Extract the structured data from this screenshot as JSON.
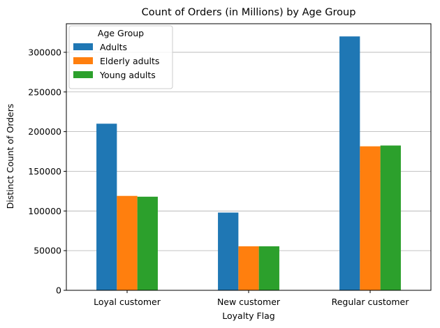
{
  "chart_data": {
    "type": "bar",
    "title": "Count of Orders (in Millions) by Age Group",
    "xlabel": "Loyalty Flag",
    "ylabel": "Distinct Count of Orders",
    "categories": [
      "Loyal customer",
      "New customer",
      "Regular customer"
    ],
    "series": [
      {
        "name": "Adults",
        "color": "#1f77b4",
        "values": [
          210000,
          98000,
          320000
        ]
      },
      {
        "name": "Elderly adults",
        "color": "#ff7f0e",
        "values": [
          119000,
          55500,
          181500
        ]
      },
      {
        "name": "Young adults",
        "color": "#2ca02c",
        "values": [
          118000,
          55500,
          182500
        ]
      }
    ],
    "ylim": [
      0,
      336000
    ],
    "yticks": [
      0,
      50000,
      100000,
      150000,
      200000,
      250000,
      300000
    ],
    "grid": "y",
    "legend": {
      "title": "Age Group",
      "placement": "top-left"
    }
  }
}
